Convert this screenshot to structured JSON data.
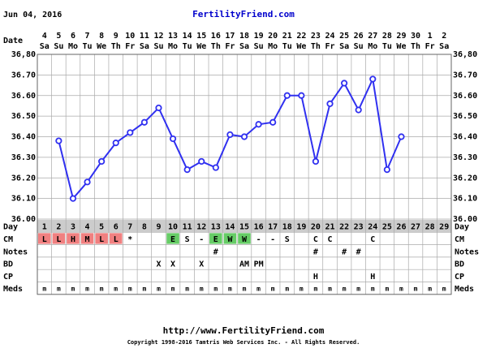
{
  "header": {
    "date": "Jun 04, 2016",
    "site": "FertilityFriend.com"
  },
  "chart_data": {
    "type": "line",
    "x_label": "Date",
    "categories": [
      "4",
      "5",
      "6",
      "7",
      "8",
      "9",
      "10",
      "11",
      "12",
      "13",
      "14",
      "15",
      "16",
      "17",
      "18",
      "19",
      "20",
      "21",
      "22",
      "23",
      "24",
      "25",
      "26",
      "27",
      "28",
      "29",
      "30",
      "1",
      "2"
    ],
    "weekdays": [
      "Sa",
      "Su",
      "Mo",
      "Tu",
      "We",
      "Th",
      "Fr",
      "Sa",
      "Su",
      "Mo",
      "Tu",
      "We",
      "Th",
      "Fr",
      "Sa",
      "Su",
      "Mo",
      "Tu",
      "We",
      "Th",
      "Fr",
      "Sa",
      "Su",
      "Mo",
      "Tu",
      "We",
      "Th",
      "Fr",
      "Sa"
    ],
    "values": [
      null,
      36.38,
      36.1,
      36.18,
      36.28,
      36.37,
      36.42,
      36.47,
      36.54,
      36.39,
      36.24,
      36.28,
      36.25,
      36.41,
      36.4,
      36.46,
      36.47,
      36.6,
      36.6,
      36.28,
      36.56,
      36.66,
      36.53,
      36.68,
      36.24,
      36.4,
      null,
      null,
      null
    ],
    "color": "#3030f0",
    "ylim": [
      36.0,
      36.8
    ],
    "yticks": [
      {
        "value": 36.0,
        "label": "36.00"
      },
      {
        "value": 36.1,
        "label": "36.10"
      },
      {
        "value": 36.2,
        "label": "36.20"
      },
      {
        "value": 36.3,
        "label": "36.30"
      },
      {
        "value": 36.4,
        "label": "36.40"
      },
      {
        "value": 36.5,
        "label": "36.50"
      },
      {
        "value": 36.6,
        "label": "36.60"
      },
      {
        "value": 36.7,
        "label": "36.70"
      },
      {
        "value": 36.8,
        "label": "36,80"
      }
    ],
    "grid": true,
    "rows": [
      {
        "label": "Day",
        "cells": [
          1,
          2,
          3,
          4,
          5,
          6,
          7,
          8,
          9,
          10,
          11,
          12,
          13,
          14,
          15,
          16,
          17,
          18,
          19,
          20,
          21,
          22,
          23,
          24,
          25,
          26,
          27,
          28,
          29
        ],
        "background": "#cccccc"
      },
      {
        "label": "CM",
        "cells": [
          "L",
          "L",
          "H",
          "M",
          "L",
          "L",
          "*",
          null,
          null,
          "E",
          "S",
          "-",
          "E",
          "W",
          "W",
          "-",
          "-",
          "S",
          null,
          "C",
          "C",
          null,
          null,
          "C",
          null,
          null,
          null,
          null,
          null
        ],
        "colors": [
          "#f08080",
          "#f08080",
          "#f08080",
          "#f08080",
          "#f08080",
          "#f08080",
          null,
          null,
          null,
          "#66cc66",
          null,
          null,
          "#66cc66",
          "#66cc66",
          "#66cc66",
          null,
          null,
          null,
          null,
          null,
          null,
          null,
          null,
          null,
          null,
          null,
          null,
          null,
          null
        ]
      },
      {
        "label": "Notes",
        "cells": [
          null,
          null,
          null,
          null,
          null,
          null,
          null,
          null,
          null,
          null,
          null,
          null,
          "#",
          null,
          null,
          null,
          null,
          null,
          null,
          "#",
          null,
          "#",
          "#",
          null,
          null,
          null,
          null,
          null,
          null
        ]
      },
      {
        "label": "BD",
        "cells": [
          null,
          null,
          null,
          null,
          null,
          null,
          null,
          null,
          "X",
          "X",
          null,
          "X",
          null,
          null,
          "AM",
          "PM",
          null,
          null,
          null,
          null,
          null,
          null,
          null,
          null,
          null,
          null,
          null,
          null,
          null
        ]
      },
      {
        "label": "CP",
        "cells": [
          null,
          null,
          null,
          null,
          null,
          null,
          null,
          null,
          null,
          null,
          null,
          null,
          null,
          null,
          null,
          null,
          null,
          null,
          null,
          "H",
          null,
          null,
          null,
          "H",
          null,
          null,
          null,
          null,
          null
        ]
      },
      {
        "label": "Meds",
        "cells": [
          "m",
          "m",
          "m",
          "m",
          "m",
          "m",
          "m",
          "m",
          "m",
          "m",
          "m",
          "m",
          "m",
          "m",
          "m",
          "m",
          "m",
          "m",
          "m",
          "m",
          "m",
          "m",
          "m",
          "m",
          "m",
          "m",
          "m",
          "m",
          "m"
        ]
      }
    ]
  },
  "footer": {
    "url": "http://www.FertilityFriend.com",
    "copyright": "Copyright 1998-2016 Tamtris Web Services Inc. - All Rights Reserved."
  }
}
